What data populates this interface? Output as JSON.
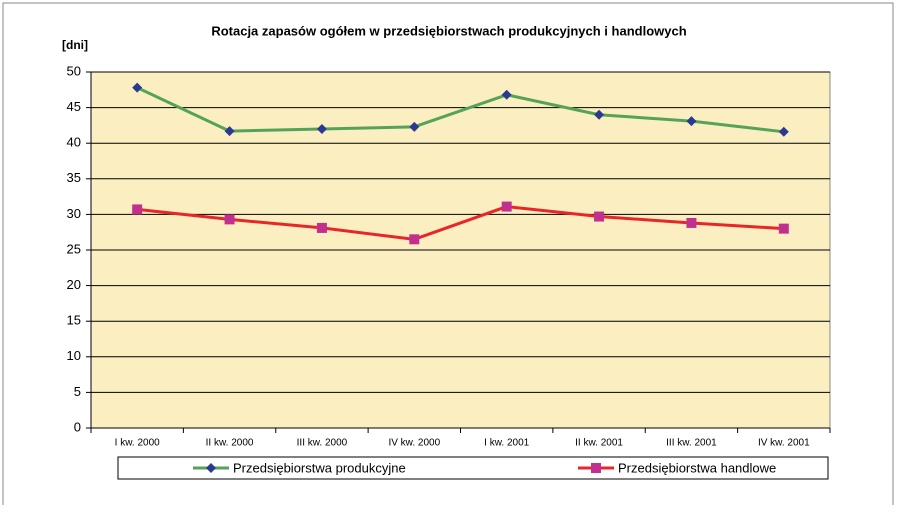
{
  "chart_data": {
    "type": "line",
    "title": "Rotacja zapasów ogółem w przedsiębiorstwach produkcyjnych i handlowych",
    "y_label": "[dni]",
    "categories": [
      "I kw. 2000",
      "II kw. 2000",
      "III kw. 2000",
      "IV kw. 2000",
      "I kw. 2001",
      "II kw. 2001",
      "III kw. 2001",
      "IV kw. 2001"
    ],
    "series": [
      {
        "name": "Przedsiębiorstwa produkcyjne",
        "color": "#55a358",
        "marker_color": "#2b3990",
        "marker": "diamond",
        "values": [
          47.8,
          41.7,
          42.0,
          42.3,
          46.8,
          44.0,
          43.1,
          41.6
        ]
      },
      {
        "name": "Przedsiębiorstwa handlowe",
        "color": "#e8262a",
        "marker_color": "#c2308f",
        "marker": "square",
        "values": [
          30.7,
          29.3,
          28.1,
          26.5,
          31.1,
          29.7,
          28.8,
          28.0
        ]
      }
    ],
    "ylim": [
      0,
      50
    ],
    "yticks": [
      0,
      5,
      10,
      15,
      20,
      25,
      30,
      35,
      40,
      45,
      50
    ],
    "grid": true,
    "plot_background": "#fbefc2",
    "legend": "bottom"
  }
}
